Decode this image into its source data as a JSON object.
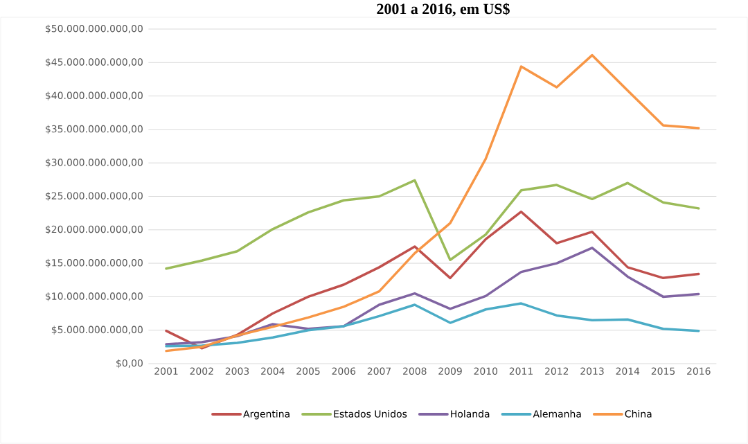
{
  "chart_data": {
    "type": "line",
    "title": "2001 a 2016, em US$",
    "categories": [
      "2001",
      "2002",
      "2003",
      "2004",
      "2005",
      "2006",
      "2007",
      "2008",
      "2009",
      "2010",
      "2011",
      "2012",
      "2013",
      "2014",
      "2015",
      "2016"
    ],
    "ylim": [
      0,
      50000000000
    ],
    "yticks": [
      {
        "value": 0,
        "label": "$0,00"
      },
      {
        "value": 5000000000,
        "label": "$5.000.000.000,00"
      },
      {
        "value": 10000000000,
        "label": "$10.000.000.000,00"
      },
      {
        "value": 15000000000,
        "label": "$15.000.000.000,00"
      },
      {
        "value": 20000000000,
        "label": "$20.000.000.000,00"
      },
      {
        "value": 25000000000,
        "label": "$25.000.000.000,00"
      },
      {
        "value": 30000000000,
        "label": "$30.000.000.000,00"
      },
      {
        "value": 35000000000,
        "label": "$35.000.000.000,00"
      },
      {
        "value": 40000000000,
        "label": "$40.000.000.000,00"
      },
      {
        "value": 45000000000,
        "label": "$45.000.000.000,00"
      },
      {
        "value": 50000000000,
        "label": "$50.000.000.000,00"
      }
    ],
    "grid": "y",
    "legend": "bottom",
    "marker": "none",
    "line_style": "solid",
    "series": [
      {
        "name": "Argentina",
        "color": "#c0504d",
        "values": [
          4900000000,
          2300000000,
          4300000000,
          7500000000,
          10000000000,
          11800000000,
          14400000000,
          17500000000,
          12800000000,
          18600000000,
          22700000000,
          18000000000,
          19700000000,
          14400000000,
          12800000000,
          13400000000
        ]
      },
      {
        "name": "Estados Unidos",
        "color": "#9bbb59",
        "values": [
          14200000000,
          15400000000,
          16800000000,
          20100000000,
          22600000000,
          24400000000,
          25000000000,
          27400000000,
          15500000000,
          19300000000,
          25900000000,
          26700000000,
          24600000000,
          27000000000,
          24100000000,
          23200000000
        ]
      },
      {
        "name": "Holanda",
        "color": "#8064a2",
        "values": [
          2900000000,
          3200000000,
          4100000000,
          5900000000,
          5200000000,
          5600000000,
          8800000000,
          10500000000,
          8200000000,
          10100000000,
          13700000000,
          15000000000,
          17300000000,
          13000000000,
          10000000000,
          10400000000
        ]
      },
      {
        "name": "Alemanha",
        "color": "#4bacc6",
        "values": [
          2600000000,
          2700000000,
          3100000000,
          3900000000,
          5000000000,
          5600000000,
          7100000000,
          8800000000,
          6100000000,
          8100000000,
          9000000000,
          7200000000,
          6500000000,
          6600000000,
          5200000000,
          4900000000
        ]
      },
      {
        "name": "China",
        "color": "#f79646",
        "values": [
          1900000000,
          2500000000,
          4200000000,
          5500000000,
          6900000000,
          8500000000,
          10800000000,
          16500000000,
          21000000000,
          30600000000,
          44400000000,
          41300000000,
          46100000000,
          40800000000,
          35600000000,
          35200000000
        ]
      }
    ]
  }
}
